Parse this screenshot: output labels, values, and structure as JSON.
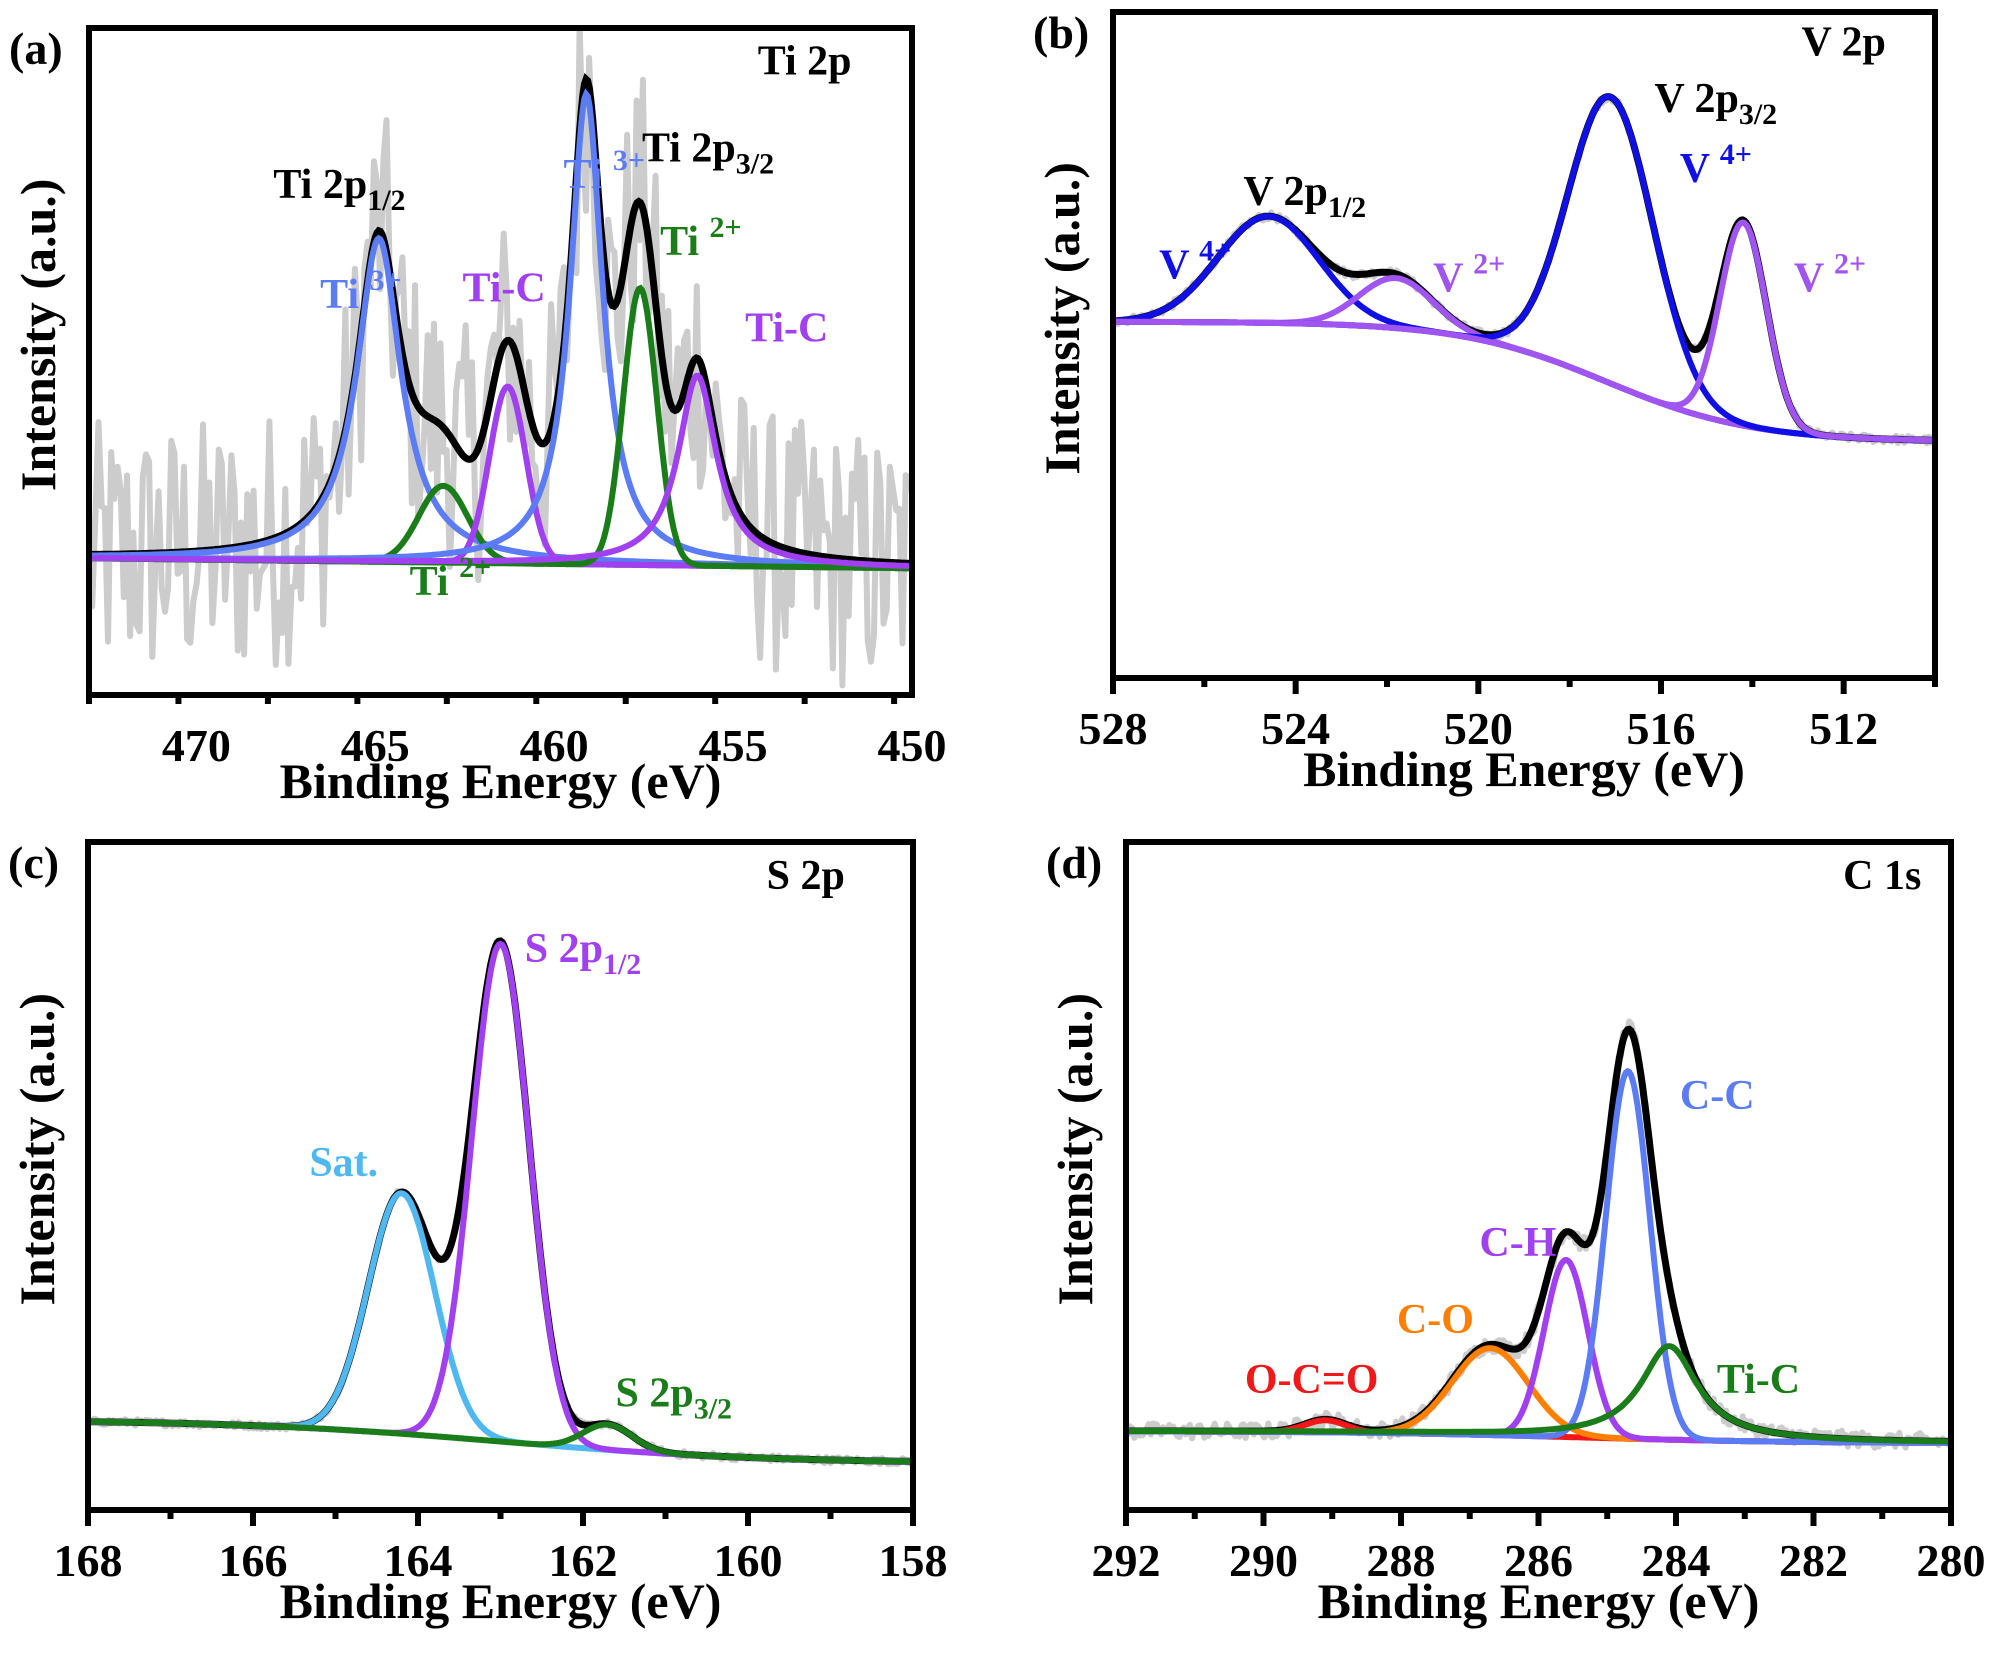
{
  "figure": {
    "description": "XPS high-resolution spectra, four panels (a)-(d)",
    "colors": {
      "raw": "#cccccc",
      "envelope": "#000000",
      "blue_light": "#5b7cf5",
      "blue": "#1010e6",
      "purple": "#a040f0",
      "purple_light": "#a055f0",
      "green": "#1a7d1a",
      "sky": "#4fb8f0",
      "orange": "#ff8000",
      "red": "#f01818"
    }
  },
  "chart_data": [
    {
      "id": "a",
      "type": "line",
      "panel_label": "(a)",
      "title": "Ti 2p",
      "xlabel": "Binding Energy (eV)",
      "ylabel": "Intensity (a.u.)",
      "xlim": [
        473,
        450
      ],
      "ylim": [
        0,
        1
      ],
      "xticks": [
        470,
        465,
        460,
        455,
        450
      ],
      "xtick_labels": [
        "470",
        "465",
        "460",
        "455",
        "450"
      ],
      "minor_xtick_step": 2.5,
      "grid": false,
      "legend": "none",
      "raw_noise": 0.2,
      "baseline": {
        "start": 0.205,
        "end": 0.19
      },
      "components": [
        {
          "name": "Ti 3+ (2p1/2)",
          "color_key": "blue_light",
          "center": 464.9,
          "height": 0.485,
          "fwhm": 1.5,
          "shape": "lorentzian"
        },
        {
          "name": "Ti 2+ (2p1/2)",
          "color_key": "green",
          "center": 463.1,
          "height": 0.115,
          "fwhm": 1.6,
          "shape": "gaussian"
        },
        {
          "name": "Ti-C (2p1/2)",
          "color_key": "purple",
          "center": 461.3,
          "height": 0.265,
          "fwhm": 1.2,
          "shape": "gaussian"
        },
        {
          "name": "Ti 3+ (2p3/2)",
          "color_key": "blue_light",
          "center": 459.1,
          "height": 0.705,
          "fwhm": 1.1,
          "shape": "lorentzian"
        },
        {
          "name": "Ti 2+ (2p3/2)",
          "color_key": "green",
          "center": 457.6,
          "height": 0.415,
          "fwhm": 1.1,
          "shape": "gaussian"
        },
        {
          "name": "Ti-C (2p3/2)",
          "color_key": "purple",
          "center": 456.0,
          "height": 0.285,
          "fwhm": 1.3,
          "shape": "lorentzian"
        }
      ],
      "annotations": [
        {
          "text": "Ti 2p",
          "sub": "",
          "sup": "",
          "color_key": "envelope",
          "x": 453.0,
          "y": 0.93
        },
        {
          "text": "Ti 2p",
          "sub": "1/2",
          "sup": "",
          "color_key": "envelope",
          "x": 466.0,
          "y": 0.745
        },
        {
          "text": "Ti 2p",
          "sub": "3/2",
          "sup": "",
          "color_key": "envelope",
          "x": 455.7,
          "y": 0.8
        },
        {
          "text": "Ti ",
          "sub": "",
          "sup": "3+",
          "color_key": "blue_light",
          "x": 458.6,
          "y": 0.76
        },
        {
          "text": "Ti ",
          "sub": "",
          "sup": "3+",
          "color_key": "blue_light",
          "x": 465.4,
          "y": 0.58
        },
        {
          "text": "Ti-C",
          "sub": "",
          "sup": "",
          "color_key": "purple",
          "x": 461.4,
          "y": 0.59
        },
        {
          "text": "Ti ",
          "sub": "",
          "sup": "2+",
          "color_key": "green",
          "x": 455.9,
          "y": 0.66
        },
        {
          "text": "Ti-C",
          "sub": "",
          "sup": "",
          "color_key": "purple",
          "x": 453.5,
          "y": 0.53
        },
        {
          "text": "Ti ",
          "sub": "",
          "sup": "2+",
          "color_key": "green",
          "x": 462.9,
          "y": 0.15
        }
      ]
    },
    {
      "id": "b",
      "type": "line",
      "panel_label": "(b)",
      "title": "V 2p",
      "xlabel": "Binding Energy (eV)",
      "ylabel": "Intensity (a.u.)",
      "xlim": [
        528,
        510
      ],
      "ylim": [
        0,
        1
      ],
      "xticks": [
        528,
        524,
        520,
        516,
        512
      ],
      "xtick_labels": [
        "528",
        "524",
        "520",
        "516",
        "512"
      ],
      "minor_xtick_step": 2,
      "grid": false,
      "legend": "none",
      "raw_noise": 0.006,
      "baseline": {
        "start": 0.535,
        "end": 0.355,
        "step_center": 517.2
      },
      "components": [
        {
          "name": "V 4+ (2p1/2)",
          "color_key": "blue",
          "center": 524.6,
          "height": 0.16,
          "fwhm": 2.6,
          "shape": "gaussian"
        },
        {
          "name": "V 2+ (2p1/2)",
          "color_key": "purple_light",
          "center": 521.8,
          "height": 0.075,
          "fwhm": 1.9,
          "shape": "gaussian"
        },
        {
          "name": "V 4+ (2p3/2)",
          "color_key": "blue",
          "center": 517.1,
          "height": 0.43,
          "fwhm": 2.2,
          "shape": "gaussian"
        },
        {
          "name": "V 2+ (2p3/2)",
          "color_key": "purple_light",
          "center": 514.2,
          "height": 0.305,
          "fwhm": 1.2,
          "shape": "gaussian"
        }
      ],
      "annotations": [
        {
          "text": "V 2p",
          "sub": "",
          "sup": "",
          "color_key": "envelope",
          "x": 512.0,
          "y": 0.935
        },
        {
          "text": "V 2p",
          "sub": "1/2",
          "sup": "",
          "color_key": "envelope",
          "x": 523.8,
          "y": 0.71
        },
        {
          "text": "V 2p",
          "sub": "3/2",
          "sup": "",
          "color_key": "envelope",
          "x": 514.8,
          "y": 0.85
        },
        {
          "text": "V ",
          "sub": "",
          "sup": "4+",
          "color_key": "blue",
          "x": 526.2,
          "y": 0.6
        },
        {
          "text": "V ",
          "sub": "",
          "sup": "2+",
          "color_key": "purple_light",
          "x": 520.2,
          "y": 0.58
        },
        {
          "text": "V ",
          "sub": "",
          "sup": "4+",
          "color_key": "blue",
          "x": 514.8,
          "y": 0.745
        },
        {
          "text": "V ",
          "sub": "",
          "sup": "2+",
          "color_key": "purple_light",
          "x": 512.3,
          "y": 0.58
        }
      ]
    },
    {
      "id": "c",
      "type": "line",
      "panel_label": "(c)",
      "title": "S 2p",
      "xlabel": "Binding Energy (eV)",
      "ylabel": "Intensity (a.u.)",
      "xlim": [
        168,
        158
      ],
      "ylim": [
        0,
        1
      ],
      "xticks": [
        168,
        166,
        164,
        162,
        160,
        158
      ],
      "xtick_labels": [
        "168",
        "166",
        "164",
        "162",
        "160",
        "158"
      ],
      "minor_xtick_step": 1,
      "grid": false,
      "legend": "none",
      "raw_noise": 0.005,
      "baseline": {
        "start": 0.135,
        "end": 0.07,
        "step_center": 163.0
      },
      "components": [
        {
          "name": "Sat.",
          "color_key": "sky",
          "center": 164.2,
          "height": 0.36,
          "fwhm": 0.95,
          "shape": "gaussian"
        },
        {
          "name": "S 2p1/2",
          "color_key": "purple",
          "center": 163.0,
          "height": 0.745,
          "fwhm": 0.82,
          "shape": "gaussian"
        },
        {
          "name": "S 2p3/2",
          "color_key": "green",
          "center": 161.7,
          "height": 0.038,
          "fwhm": 0.7,
          "shape": "gaussian"
        }
      ],
      "annotations": [
        {
          "text": "S 2p",
          "sub": "",
          "sup": "",
          "color_key": "envelope",
          "x": 159.3,
          "y": 0.93
        },
        {
          "text": "S 2p",
          "sub": "1/2",
          "sup": "",
          "color_key": "purple",
          "x": 162.0,
          "y": 0.82
        },
        {
          "text": "Sat.",
          "sub": "",
          "sup": "",
          "color_key": "sky",
          "x": 164.9,
          "y": 0.5
        },
        {
          "text": "S 2p",
          "sub": "3/2",
          "sup": "",
          "color_key": "green",
          "x": 160.9,
          "y": 0.155
        }
      ]
    },
    {
      "id": "d",
      "type": "line",
      "panel_label": "(d)",
      "title": "C 1s",
      "xlabel": "Binding Energy (eV)",
      "ylabel": "Intensity (a.u.)",
      "xlim": [
        292,
        280
      ],
      "ylim": [
        0,
        1
      ],
      "xticks": [
        292,
        290,
        288,
        286,
        284,
        282,
        280
      ],
      "xtick_labels": [
        "292",
        "290",
        "288",
        "286",
        "284",
        "282",
        "280"
      ],
      "minor_xtick_step": 1,
      "grid": false,
      "legend": "none",
      "raw_noise": 0.012,
      "baseline": {
        "start": 0.118,
        "end": 0.1,
        "step_center": 285.5
      },
      "components": [
        {
          "name": "O-C=O",
          "color_key": "red",
          "center": 289.1,
          "height": 0.018,
          "fwhm": 0.7,
          "shape": "gaussian"
        },
        {
          "name": "C-O",
          "color_key": "orange",
          "center": 286.7,
          "height": 0.13,
          "fwhm": 1.3,
          "shape": "gaussian"
        },
        {
          "name": "C-H",
          "color_key": "purple",
          "center": 285.6,
          "height": 0.265,
          "fwhm": 0.75,
          "shape": "gaussian"
        },
        {
          "name": "C-C",
          "color_key": "blue_light",
          "center": 284.7,
          "height": 0.55,
          "fwhm": 0.75,
          "shape": "gaussian"
        },
        {
          "name": "Ti-C",
          "color_key": "green",
          "center": 284.1,
          "height": 0.14,
          "fwhm": 1.0,
          "shape": "lorentzian"
        }
      ],
      "annotations": [
        {
          "text": "C 1s",
          "sub": "",
          "sup": "",
          "color_key": "envelope",
          "x": 281.0,
          "y": 0.93
        },
        {
          "text": "C-C",
          "sub": "",
          "sup": "",
          "color_key": "blue_light",
          "x": 283.4,
          "y": 0.6
        },
        {
          "text": "C-H",
          "sub": "",
          "sup": "",
          "color_key": "purple",
          "x": 286.3,
          "y": 0.38
        },
        {
          "text": "C-O",
          "sub": "",
          "sup": "",
          "color_key": "orange",
          "x": 287.5,
          "y": 0.265
        },
        {
          "text": "O-C=O",
          "sub": "",
          "sup": "",
          "color_key": "red",
          "x": 289.3,
          "y": 0.175
        },
        {
          "text": "Ti-C",
          "sub": "",
          "sup": "",
          "color_key": "green",
          "x": 282.8,
          "y": 0.175
        }
      ]
    }
  ]
}
